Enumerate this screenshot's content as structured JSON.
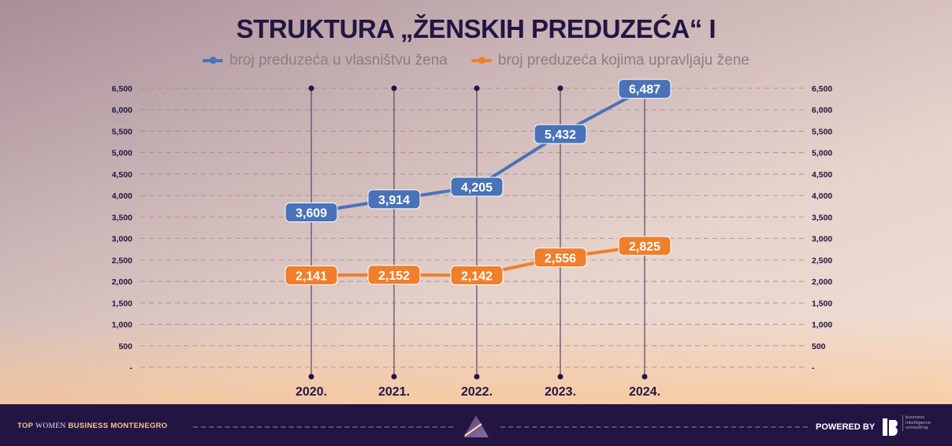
{
  "title": "STRUKTURA „ŽENSKIH PREDUZEĆA“ I",
  "footer": {
    "brand_top": "TOP",
    "brand_women": "WOMEN",
    "brand_rest": "BUSINESS MONTENEGRO",
    "powered_by": "POWERED BY",
    "partner_logo_text": "business intelligence consulting"
  },
  "chart_data": {
    "type": "line",
    "title": "STRUKTURA „ŽENSKIH PREDUZEĆA“ I",
    "categories": [
      "2020.",
      "2021.",
      "2022.",
      "2023.",
      "2024."
    ],
    "series": [
      {
        "name": "broj preduzeća u vlasništvu žena",
        "color": "#4a72b8",
        "values": [
          3609,
          3914,
          4205,
          5432,
          6487
        ],
        "labels": [
          "3,609",
          "3,914",
          "4,205",
          "5,432",
          "6,487"
        ]
      },
      {
        "name": "broj preduzeća kojima upravljaju žene",
        "color": "#ef7f2d",
        "values": [
          2141,
          2152,
          2142,
          2556,
          2825
        ],
        "labels": [
          "2,141",
          "2,152",
          "2,142",
          "2,556",
          "2,825"
        ]
      }
    ],
    "yticks": [
      "-",
      "500",
      "1,000",
      "1,500",
      "2,000",
      "2,500",
      "3,000",
      "3,500",
      "4,000",
      "4,500",
      "5,000",
      "5,500",
      "6,000",
      "6,500"
    ],
    "ylim": [
      0,
      6500
    ],
    "grid": true,
    "legend": "top-center",
    "axis_both_sides": true
  }
}
